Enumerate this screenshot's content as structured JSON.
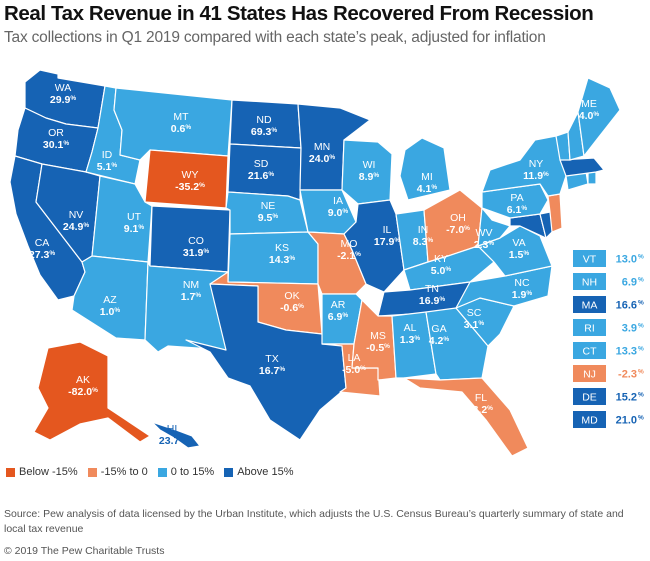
{
  "title": "Real Tax Revenue in 41 States Has Recovered From Recession",
  "subtitle": "Tax collections in Q1 2019 compared with each state’s peak, adjusted for inflation",
  "colors": {
    "below_15": "#e4571f",
    "neg15_to_0": "#f08a5c",
    "zero_to_15": "#3aa7e1",
    "above_15": "#1663b4",
    "border": "#ffffff"
  },
  "legend": [
    {
      "label": "Below -15%",
      "category": "below_15"
    },
    {
      "label": "-15% to 0",
      "category": "neg15_to_0"
    },
    {
      "label": "0 to 15%",
      "category": "zero_to_15"
    },
    {
      "label": "Above 15%",
      "category": "above_15"
    }
  ],
  "states": {
    "WA": {
      "value": "29.9",
      "category": "above_15"
    },
    "OR": {
      "value": "30.1",
      "category": "above_15"
    },
    "CA": {
      "value": "27.3",
      "category": "above_15"
    },
    "NV": {
      "value": "24.9",
      "category": "above_15"
    },
    "ID": {
      "value": "5.1",
      "category": "zero_to_15"
    },
    "MT": {
      "value": "0.6",
      "category": "zero_to_15"
    },
    "WY": {
      "value": "-35.2",
      "category": "below_15"
    },
    "UT": {
      "value": "9.1",
      "category": "zero_to_15"
    },
    "AZ": {
      "value": "1.0",
      "category": "zero_to_15"
    },
    "CO": {
      "value": "31.9",
      "category": "above_15"
    },
    "NM": {
      "value": "1.7",
      "category": "zero_to_15"
    },
    "ND": {
      "value": "69.3",
      "category": "above_15"
    },
    "SD": {
      "value": "21.6",
      "category": "above_15"
    },
    "NE": {
      "value": "9.5",
      "category": "zero_to_15"
    },
    "KS": {
      "value": "14.3",
      "category": "zero_to_15"
    },
    "OK": {
      "value": "-0.6",
      "category": "neg15_to_0"
    },
    "TX": {
      "value": "16.7",
      "category": "above_15"
    },
    "MN": {
      "value": "24.0",
      "category": "above_15"
    },
    "IA": {
      "value": "9.0",
      "category": "zero_to_15"
    },
    "MO": {
      "value": "-2.1",
      "category": "neg15_to_0"
    },
    "AR": {
      "value": "6.9",
      "category": "zero_to_15"
    },
    "LA": {
      "value": "-5.0",
      "category": "neg15_to_0"
    },
    "WI": {
      "value": "8.9",
      "category": "zero_to_15"
    },
    "IL": {
      "value": "17.9",
      "category": "above_15"
    },
    "MI": {
      "value": "4.1",
      "category": "zero_to_15"
    },
    "IN": {
      "value": "8.3",
      "category": "zero_to_15"
    },
    "OH": {
      "value": "-7.0",
      "category": "neg15_to_0"
    },
    "KY": {
      "value": "5.0",
      "category": "zero_to_15"
    },
    "TN": {
      "value": "16.9",
      "category": "above_15"
    },
    "MS": {
      "value": "-0.5",
      "category": "neg15_to_0"
    },
    "AL": {
      "value": "1.3",
      "category": "zero_to_15"
    },
    "GA": {
      "value": "4.2",
      "category": "zero_to_15"
    },
    "FL": {
      "value": "-8.2",
      "category": "neg15_to_0"
    },
    "SC": {
      "value": "3.1",
      "category": "zero_to_15"
    },
    "NC": {
      "value": "1.9",
      "category": "zero_to_15"
    },
    "VA": {
      "value": "1.5",
      "category": "zero_to_15"
    },
    "WV": {
      "value": "2.3",
      "category": "zero_to_15"
    },
    "PA": {
      "value": "6.1",
      "category": "zero_to_15"
    },
    "NY": {
      "value": "11.9",
      "category": "zero_to_15"
    },
    "ME": {
      "value": "4.0",
      "category": "zero_to_15"
    },
    "AK": {
      "value": "-82.0",
      "category": "below_15"
    },
    "HI": {
      "value": "23.7",
      "category": "above_15"
    },
    "VT": {
      "value": "13.0",
      "category": "zero_to_15"
    },
    "NH": {
      "value": "6.9",
      "category": "zero_to_15"
    },
    "MA": {
      "value": "16.6",
      "category": "above_15"
    },
    "RI": {
      "value": "3.9",
      "category": "zero_to_15"
    },
    "CT": {
      "value": "13.3",
      "category": "zero_to_15"
    },
    "NJ": {
      "value": "-2.3",
      "category": "neg15_to_0"
    },
    "DE": {
      "value": "15.2",
      "category": "above_15"
    },
    "MD": {
      "value": "21.0",
      "category": "above_15"
    }
  },
  "small_states_table": [
    "VT",
    "NH",
    "MA",
    "RI",
    "CT",
    "NJ",
    "DE",
    "MD"
  ],
  "percent_sign": "%",
  "source": "Source: Pew analysis of data licensed by the Urban Institute, which adjusts the U.S. Census Bureau’s quarterly summary of state and local tax revenue",
  "copyright": "© 2019 The Pew Charitable Trusts"
}
